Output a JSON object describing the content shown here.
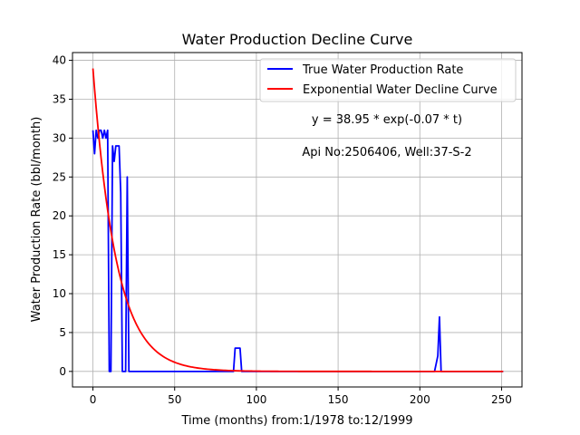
{
  "chart_data": {
    "type": "line",
    "title": "Water Production Decline Curve",
    "xlabel": "Time (months) from:1/1978 to:12/1999",
    "ylabel": "Water Production Rate (bbl/month)",
    "xlim": [
      -12.5,
      262.5
    ],
    "ylim": [
      -2,
      41
    ],
    "x_ticks": [
      0,
      50,
      100,
      150,
      200,
      250
    ],
    "y_ticks": [
      0,
      5,
      10,
      15,
      20,
      25,
      30,
      35,
      40
    ],
    "grid": true,
    "legend_position": "top-right",
    "annotations": [
      "y = 38.95 * exp(-0.07 * t)",
      "Api No:2506406, Well:37-S-2"
    ],
    "fit": {
      "a": 38.95,
      "b": -0.07,
      "x_start": 0,
      "x_end": 251
    },
    "series": [
      {
        "name": "True Water Production Rate",
        "color": "#0000ff",
        "points": [
          [
            0,
            31
          ],
          [
            1,
            28
          ],
          [
            2,
            31
          ],
          [
            3,
            30
          ],
          [
            4,
            31
          ],
          [
            5,
            31
          ],
          [
            6,
            30
          ],
          [
            7,
            31
          ],
          [
            8,
            30
          ],
          [
            9,
            31
          ],
          [
            10,
            0
          ],
          [
            11,
            0
          ],
          [
            12,
            29
          ],
          [
            13,
            27
          ],
          [
            14,
            29
          ],
          [
            15,
            29
          ],
          [
            16,
            29
          ],
          [
            17,
            23
          ],
          [
            18,
            0
          ],
          [
            19,
            0
          ],
          [
            20,
            0
          ],
          [
            21,
            25
          ],
          [
            22,
            0
          ],
          [
            23,
            0
          ],
          [
            24,
            0
          ],
          [
            25,
            0
          ],
          [
            30,
            0
          ],
          [
            40,
            0
          ],
          [
            50,
            0
          ],
          [
            60,
            0
          ],
          [
            70,
            0
          ],
          [
            80,
            0
          ],
          [
            85,
            0
          ],
          [
            86,
            0
          ],
          [
            87,
            3
          ],
          [
            88,
            3
          ],
          [
            89,
            3
          ],
          [
            90,
            3
          ],
          [
            91,
            0
          ],
          [
            92,
            0
          ],
          [
            100,
            0
          ],
          [
            150,
            0
          ],
          [
            200,
            0
          ],
          [
            208,
            0
          ],
          [
            209,
            0
          ],
          [
            210,
            1
          ],
          [
            211,
            2
          ],
          [
            212,
            7
          ],
          [
            213,
            0
          ],
          [
            214,
            0
          ],
          [
            220,
            0
          ],
          [
            230,
            0
          ],
          [
            240,
            0
          ],
          [
            251,
            0
          ]
        ]
      },
      {
        "name": "Exponential Water Decline Curve",
        "color": "#ff0000"
      }
    ]
  }
}
